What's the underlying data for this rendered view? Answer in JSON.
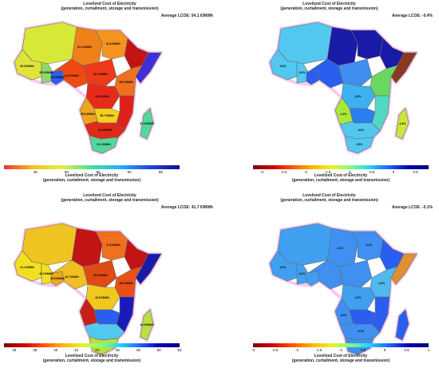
{
  "panels": [
    {
      "title": "Levelized Cost of Electricity",
      "subtitle": "(generation, curtailment, storage and transmission)",
      "average": "Average LCOE: 54.1 €/MWh",
      "colorbar": {
        "title": "Levelized Cost of Electricity",
        "subtitle": "(generation, curtailment, storage and transmission)",
        "min": 40,
        "max": 68,
        "ticks": [
          "45",
          "50",
          "55",
          "60",
          "65"
        ],
        "tick_values": [
          45,
          50,
          55,
          60,
          65
        ],
        "palette": "rainbow"
      },
      "regions": [
        {
          "id": "nw",
          "color": "#d7e836",
          "label": ""
        },
        {
          "id": "wa1",
          "color": "#e0e43a",
          "label": "52.6 €/MWh"
        },
        {
          "id": "wa2",
          "color": "#8fd86a",
          "label": "55.9 €/MWh"
        },
        {
          "id": "wa3",
          "color": "#2a5ef0",
          "label": "52.9 €/MWh"
        },
        {
          "id": "sahel",
          "color": "#f0801a",
          "label": "61.2 €/MWh"
        },
        {
          "id": "ne",
          "color": "#f5941e",
          "label": "61.6 €/MWh"
        },
        {
          "id": "central",
          "color": "#f04a12",
          "label": "62.5 €/MWh"
        },
        {
          "id": "ca2",
          "color": "#ec3a1a",
          "label": "62.1 €/MWh"
        },
        {
          "id": "horn",
          "color": "#c21414",
          "label": ""
        },
        {
          "id": "somalia",
          "color": "#3f2fd8",
          "label": ""
        },
        {
          "id": "ea",
          "color": "#f07020",
          "label": "58.3 €/MWh"
        },
        {
          "id": "congo",
          "color": "#e82a1a",
          "label": "62.4 €/MWh"
        },
        {
          "id": "angola",
          "color": "#f0a41e",
          "label": "59.0 €/MWh"
        },
        {
          "id": "zambia",
          "color": "#f5d020",
          "label": "55.7 €/MWh"
        },
        {
          "id": "mozambique",
          "color": "#e0201a",
          "label": ""
        },
        {
          "id": "southern",
          "color": "#de2a18",
          "label": "61.5 €/MWh"
        },
        {
          "id": "sa",
          "color": "#52d89a",
          "label": "51.4 €/MWh"
        },
        {
          "id": "madagascar",
          "color": "#52d89a",
          "label": "51.6 €/MWh"
        }
      ]
    },
    {
      "title": "Levelized Cost of Electricity",
      "subtitle": "(generation, curtailment, storage and transmission)",
      "average": "Average LCOE: -0.4%",
      "colorbar": {
        "title": "Levelized Cost of Electricity",
        "subtitle": "(generation, curtailment, storage and transmission)",
        "min": -3.2,
        "max": 0.8,
        "ticks": [
          "-3",
          "-2.5",
          "-2",
          "-1.5",
          "-1",
          "-0.5",
          "0",
          "0.5"
        ],
        "tick_values": [
          -3,
          -2.5,
          -2,
          -1.5,
          -1,
          -0.5,
          0,
          0.5
        ],
        "palette": "rainbow"
      },
      "regions": [
        {
          "id": "nw",
          "color": "#52c8f0",
          "label": ""
        },
        {
          "id": "wa1",
          "color": "#52c8f0",
          "label": "-0.3%"
        },
        {
          "id": "wa2",
          "color": "#52c8f0",
          "label": "-0.3%"
        },
        {
          "id": "wa3",
          "color": "#2a5ef0",
          "label": ""
        },
        {
          "id": "sahel",
          "color": "#1a1aa8",
          "label": ""
        },
        {
          "id": "ne",
          "color": "#1a1aa8",
          "label": ""
        },
        {
          "id": "central",
          "color": "#2a5ef0",
          "label": ""
        },
        {
          "id": "ca2",
          "color": "#3f8ef0",
          "label": ""
        },
        {
          "id": "horn",
          "color": "#1a1aa8",
          "label": ""
        },
        {
          "id": "somalia",
          "color": "#8a3a20",
          "label": ""
        },
        {
          "id": "ea",
          "color": "#6ad860",
          "label": ""
        },
        {
          "id": "congo",
          "color": "#3fb0f0",
          "label": "-0.3%"
        },
        {
          "id": "angola",
          "color": "#a8e83a",
          "label": "-1.3%"
        },
        {
          "id": "zambia",
          "color": "#2a7ef0",
          "label": ""
        },
        {
          "id": "mozambique",
          "color": "#52d8c0",
          "label": ""
        },
        {
          "id": "southern",
          "color": "#52c8f0",
          "label": "-0.3%"
        },
        {
          "id": "sa",
          "color": "#52c8f0",
          "label": "-0.3%"
        },
        {
          "id": "madagascar",
          "color": "#c8e83a",
          "label": "-1.4%"
        }
      ]
    },
    {
      "title": "Levelized Cost of Electricity",
      "subtitle": "(generation, curtailment, storage and transmission)",
      "average": "Average LCOE: 41.7 €/MWh",
      "colorbar": {
        "title": "Levelized Cost of Electricity",
        "subtitle": "(generation, curtailment, storage and transmission)",
        "min": 35,
        "max": 52,
        "ticks": [
          "36",
          "38",
          "40",
          "42",
          "44",
          "46",
          "48",
          "50",
          "52"
        ],
        "tick_values": [
          36,
          38,
          40,
          42,
          44,
          46,
          48,
          50,
          52
        ],
        "palette": "rainbow-reversed"
      },
      "regions": [
        {
          "id": "nw",
          "color": "#f0c420",
          "label": ""
        },
        {
          "id": "wa1",
          "color": "#f0e020",
          "label": "41.1 €/MWh"
        },
        {
          "id": "wa2",
          "color": "#f0e020",
          "label": "42.0 €/MWh"
        },
        {
          "id": "wa3",
          "color": "#f0a820",
          "label": "43.5 €/MWh"
        },
        {
          "id": "sahel",
          "color": "#c21414",
          "label": ""
        },
        {
          "id": "ne",
          "color": "#f07020",
          "label": "37.6 €/MWh"
        },
        {
          "id": "central",
          "color": "#f0c020",
          "label": "40.7 €/MWh"
        },
        {
          "id": "ca2",
          "color": "#e04a16",
          "label": "39.3 €/MWh"
        },
        {
          "id": "horn",
          "color": "#c21414",
          "label": ""
        },
        {
          "id": "somalia",
          "color": "#1a1aa8",
          "label": ""
        },
        {
          "id": "ea",
          "color": "#e85018",
          "label": "38.9 €/MWh"
        },
        {
          "id": "congo",
          "color": "#f0c820",
          "label": "42.6 €/MWh"
        },
        {
          "id": "angola",
          "color": "#c81e18",
          "label": ""
        },
        {
          "id": "zambia",
          "color": "#2a5ef0",
          "label": ""
        },
        {
          "id": "mozambique",
          "color": "#1a1ab8",
          "label": ""
        },
        {
          "id": "southern",
          "color": "#52c8f0",
          "label": ""
        },
        {
          "id": "sa",
          "color": "#b8e040",
          "label": "42.5 €/MWh"
        },
        {
          "id": "madagascar",
          "color": "#b8e040",
          "label": "42.5 €/MWh"
        }
      ]
    },
    {
      "title": "Levelized Cost of Electricity",
      "subtitle": "(generation, curtailment, storage and transmission)",
      "average": "Average LCOE: -0.1%",
      "colorbar": {
        "title": "Levelized Cost of Electricity",
        "subtitle": "(generation, curtailment, storage and transmission)",
        "min": -3,
        "max": 1,
        "ticks": [
          "-3",
          "-2.5",
          "-2",
          "-1.5",
          "-1",
          "-0.5",
          "0",
          "0.5",
          "1"
        ],
        "tick_values": [
          -3,
          -2.5,
          -2,
          -1.5,
          -1,
          -0.5,
          0,
          0.5,
          1
        ],
        "palette": "rainbow"
      },
      "regions": [
        {
          "id": "nw",
          "color": "#3fa0f0",
          "label": ""
        },
        {
          "id": "wa1",
          "color": "#3fa0f0",
          "label": "-0.1%"
        },
        {
          "id": "wa2",
          "color": "#3fa0f0",
          "label": "-0.2%"
        },
        {
          "id": "wa3",
          "color": "#3fa0f0",
          "label": ""
        },
        {
          "id": "sahel",
          "color": "#3f90f0",
          "label": "-0.1%"
        },
        {
          "id": "ne",
          "color": "#3f90f0",
          "label": "-0.1%"
        },
        {
          "id": "central",
          "color": "#3f90f0",
          "label": ""
        },
        {
          "id": "ca2",
          "color": "#3f90f0",
          "label": ""
        },
        {
          "id": "horn",
          "color": "#2a5ef0",
          "label": ""
        },
        {
          "id": "somalia",
          "color": "#e09030",
          "label": ""
        },
        {
          "id": "ea",
          "color": "#52b8f0",
          "label": "-0.2%"
        },
        {
          "id": "congo",
          "color": "#3fa0f0",
          "label": "-0.2%"
        },
        {
          "id": "angola",
          "color": "#3f90f0",
          "label": "-0.1%"
        },
        {
          "id": "zambia",
          "color": "#2a5ef0",
          "label": ""
        },
        {
          "id": "mozambique",
          "color": "#2a5ef0",
          "label": ""
        },
        {
          "id": "southern",
          "color": "#3f90f0",
          "label": "-0.1%"
        },
        {
          "id": "sa",
          "color": "#3f90f0",
          "label": ""
        },
        {
          "id": "madagascar",
          "color": "#2a5ef0",
          "label": ""
        }
      ]
    }
  ]
}
